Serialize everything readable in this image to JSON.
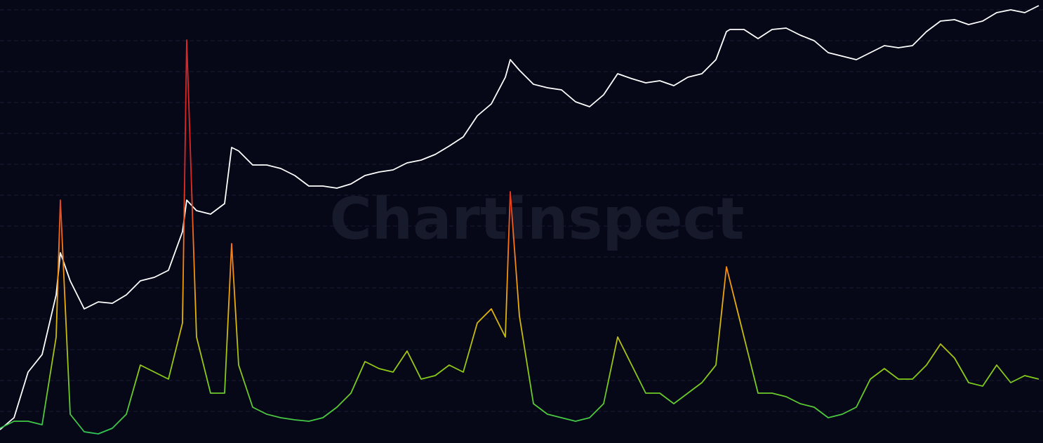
{
  "chart_data": {
    "type": "line",
    "watermark": "Chartinspect",
    "x": [
      0,
      20,
      40,
      60,
      80,
      86,
      100,
      120,
      140,
      160,
      180,
      200,
      220,
      240,
      260,
      266,
      280,
      300,
      320,
      330,
      340,
      360,
      380,
      400,
      420,
      440,
      460,
      480,
      500,
      520,
      540,
      560,
      580,
      600,
      620,
      640,
      660,
      680,
      700,
      720,
      727,
      740,
      760,
      780,
      800,
      820,
      840,
      860,
      880,
      900,
      920,
      940,
      960,
      980,
      1000,
      1020,
      1035,
      1040,
      1060,
      1080,
      1100,
      1120,
      1140,
      1160,
      1180,
      1200,
      1220,
      1240,
      1260,
      1280,
      1300,
      1320,
      1340,
      1360,
      1380,
      1400,
      1420,
      1440,
      1460,
      1480
    ],
    "series": [
      {
        "color": "#ffffff",
        "values": [
          19,
          36,
          101,
          126,
          211,
          271,
          231,
          191,
          201,
          199,
          211,
          231,
          236,
          246,
          301,
          346,
          331,
          326,
          341,
          421,
          416,
          396,
          396,
          391,
          381,
          366,
          366,
          363,
          369,
          381,
          386,
          389,
          399,
          403,
          411,
          423,
          436,
          466,
          483,
          521,
          546,
          531,
          511,
          506,
          503,
          486,
          479,
          496,
          526,
          519,
          513,
          516,
          509,
          521,
          526,
          546,
          586,
          589,
          589,
          576,
          589,
          591,
          581,
          573,
          556,
          551,
          546,
          556,
          566,
          563,
          566,
          586,
          601,
          603,
          596,
          601,
          613,
          617,
          613,
          623
        ]
      },
      {
        "colorscale": [
          "#22c55e",
          "#84cc16",
          "#eab308",
          "#f97316",
          "#dc2626"
        ],
        "values": [
          21,
          31,
          31,
          26,
          151,
          346,
          41,
          16,
          13,
          21,
          41,
          111,
          101,
          91,
          171,
          574,
          151,
          71,
          71,
          284,
          111,
          51,
          41,
          36,
          33,
          31,
          36,
          51,
          71,
          116,
          106,
          101,
          131,
          91,
          96,
          111,
          101,
          171,
          191,
          151,
          358,
          181,
          56,
          41,
          36,
          31,
          36,
          56,
          151,
          111,
          71,
          71,
          56,
          71,
          86,
          111,
          251,
          231,
          151,
          71,
          71,
          66,
          56,
          51,
          36,
          41,
          51,
          91,
          106,
          91,
          91,
          111,
          141,
          121,
          86,
          81,
          111,
          86,
          96,
          91
        ]
      }
    ],
    "xlim": [
      0,
      1486
    ],
    "ylim": [
      0,
      631
    ],
    "yticks": [
      45,
      89,
      133,
      177,
      221,
      265,
      309,
      353,
      397,
      441,
      485,
      529,
      573,
      617
    ],
    "grid": true
  }
}
